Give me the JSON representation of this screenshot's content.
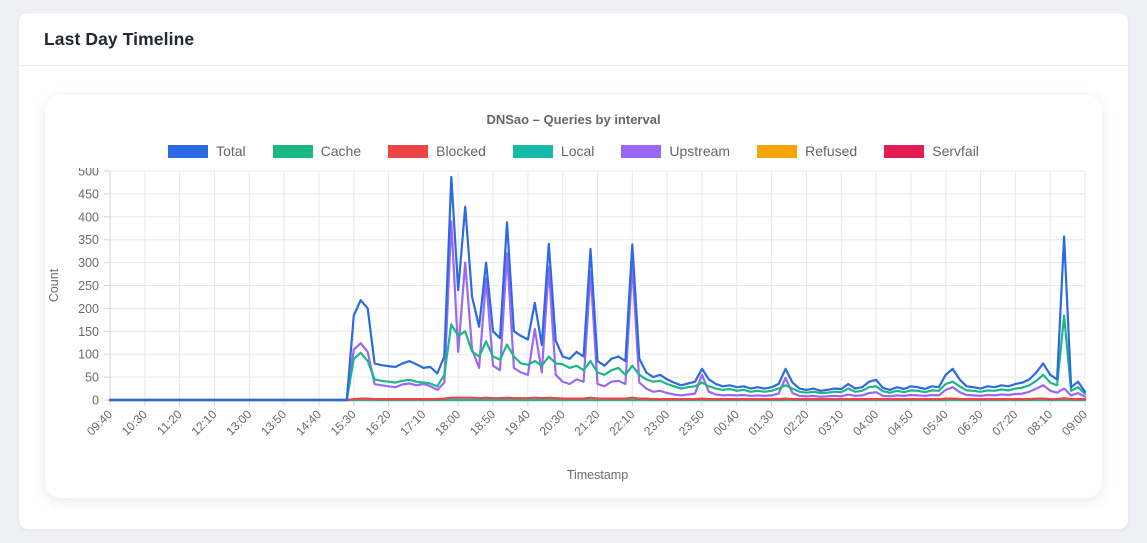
{
  "card": {
    "title": "Last Day Timeline"
  },
  "chart_data": {
    "type": "line",
    "title": "DNSao – Queries by interval",
    "xlabel": "Timestamp",
    "ylabel": "Count",
    "ylim": [
      0,
      500
    ],
    "y_ticks": [
      0,
      50,
      100,
      150,
      200,
      250,
      300,
      350,
      400,
      450,
      500
    ],
    "grid": true,
    "legend_position": "top",
    "interval_minutes": 10,
    "x_tick_every": 5,
    "x_tick_labels": [
      "09:40",
      "10:30",
      "11:20",
      "12:10",
      "13:00",
      "13:50",
      "14:40",
      "15:30",
      "16:20",
      "17:10",
      "18:00",
      "18:50",
      "19:40",
      "20:30",
      "21:20",
      "22:10",
      "23:00",
      "23:50",
      "00:40",
      "01:30",
      "02:20",
      "03:10",
      "04:00",
      "04:50",
      "05:40",
      "06:30",
      "07:20",
      "08:10",
      "09:00"
    ],
    "series": [
      {
        "name": "Total",
        "color": "#2b6ae3",
        "values": [
          0,
          0,
          0,
          0,
          0,
          0,
          0,
          0,
          0,
          0,
          0,
          0,
          0,
          0,
          0,
          0,
          0,
          0,
          0,
          0,
          0,
          0,
          0,
          0,
          0,
          0,
          0,
          0,
          0,
          0,
          0,
          0,
          0,
          0,
          0,
          185,
          218,
          200,
          80,
          76,
          74,
          72,
          80,
          85,
          78,
          70,
          72,
          58,
          95,
          487,
          240,
          422,
          225,
          160,
          300,
          150,
          135,
          388,
          150,
          140,
          132,
          212,
          120,
          341,
          130,
          95,
          90,
          105,
          95,
          330,
          85,
          75,
          90,
          95,
          85,
          340,
          90,
          60,
          50,
          55,
          45,
          38,
          32,
          36,
          40,
          68,
          45,
          35,
          30,
          32,
          28,
          30,
          25,
          28,
          25,
          28,
          35,
          68,
          38,
          25,
          22,
          25,
          20,
          22,
          25,
          24,
          35,
          25,
          28,
          40,
          44,
          26,
          22,
          28,
          24,
          30,
          28,
          24,
          30,
          28,
          55,
          68,
          45,
          30,
          28,
          25,
          30,
          28,
          32,
          30,
          35,
          38,
          45,
          60,
          80,
          55,
          45,
          357,
          28,
          40,
          18
        ]
      },
      {
        "name": "Cache",
        "color": "#1cb785",
        "values": [
          0,
          0,
          0,
          0,
          0,
          0,
          0,
          0,
          0,
          0,
          0,
          0,
          0,
          0,
          0,
          0,
          0,
          0,
          0,
          0,
          0,
          0,
          0,
          0,
          0,
          0,
          0,
          0,
          0,
          0,
          0,
          0,
          0,
          0,
          0,
          90,
          103,
          85,
          45,
          42,
          40,
          38,
          42,
          44,
          40,
          38,
          36,
          30,
          55,
          165,
          140,
          150,
          106,
          95,
          128,
          95,
          88,
          121,
          95,
          80,
          77,
          85,
          75,
          95,
          80,
          78,
          70,
          75,
          65,
          85,
          60,
          55,
          65,
          70,
          55,
          75,
          55,
          45,
          40,
          42,
          35,
          30,
          25,
          28,
          30,
          38,
          30,
          25,
          22,
          24,
          20,
          22,
          18,
          20,
          18,
          20,
          25,
          32,
          25,
          18,
          16,
          18,
          15,
          16,
          18,
          17,
          25,
          18,
          20,
          28,
          30,
          19,
          16,
          20,
          17,
          21,
          20,
          17,
          21,
          20,
          35,
          40,
          30,
          21,
          20,
          18,
          21,
          20,
          23,
          21,
          25,
          27,
          32,
          42,
          55,
          38,
          32,
          184,
          20,
          28,
          13
        ]
      },
      {
        "name": "Blocked",
        "color": "#ec4545",
        "values": [
          0,
          0,
          0,
          0,
          0,
          0,
          0,
          0,
          0,
          0,
          0,
          0,
          0,
          0,
          0,
          0,
          0,
          0,
          0,
          0,
          0,
          0,
          0,
          0,
          0,
          0,
          0,
          0,
          0,
          0,
          0,
          0,
          0,
          0,
          0,
          2,
          3,
          3,
          2,
          2,
          2,
          2,
          2,
          2,
          2,
          2,
          2,
          2,
          3,
          5,
          5,
          5,
          5,
          4,
          5,
          4,
          4,
          5,
          4,
          4,
          4,
          5,
          4,
          5,
          4,
          3,
          3,
          3,
          3,
          5,
          3,
          3,
          3,
          3,
          3,
          5,
          3,
          3,
          2,
          2,
          2,
          2,
          2,
          2,
          2,
          3,
          2,
          2,
          2,
          2,
          2,
          2,
          2,
          2,
          2,
          2,
          2,
          3,
          2,
          2,
          2,
          2,
          2,
          2,
          2,
          2,
          2,
          2,
          2,
          2,
          2,
          2,
          2,
          2,
          2,
          2,
          2,
          2,
          2,
          2,
          3,
          3,
          2,
          2,
          2,
          2,
          2,
          2,
          2,
          2,
          2,
          2,
          2,
          3,
          3,
          2,
          2,
          4,
          2,
          2,
          2
        ]
      },
      {
        "name": "Local",
        "color": "#16b8a6",
        "values": [
          0,
          0,
          0,
          0,
          0,
          0,
          0,
          0,
          0,
          0,
          0,
          0,
          0,
          0,
          0,
          0,
          0,
          0,
          0,
          0,
          0,
          0,
          0,
          0,
          0,
          0,
          0,
          0,
          0,
          0,
          0,
          0,
          0,
          0,
          0,
          0,
          0,
          0,
          0,
          0,
          0,
          0,
          0,
          0,
          0,
          0,
          0,
          0,
          0,
          0,
          0,
          0,
          0,
          0,
          0,
          0,
          0,
          0,
          0,
          0,
          0,
          0,
          0,
          0,
          0,
          0,
          0,
          0,
          0,
          0,
          0,
          0,
          0,
          0,
          0,
          0,
          0,
          0,
          0,
          0,
          0,
          0,
          0,
          0,
          0,
          0,
          0,
          0,
          0,
          0,
          0,
          0,
          0,
          0,
          0,
          0,
          0,
          0,
          0,
          0,
          0,
          0,
          0,
          0,
          0,
          0,
          0,
          0,
          0,
          0,
          0,
          0,
          0,
          0,
          0,
          0,
          0,
          0,
          0,
          0,
          0,
          0,
          0,
          0,
          0,
          0,
          0,
          0,
          0,
          0,
          0,
          0,
          0,
          0,
          0,
          0,
          0,
          0,
          0,
          0,
          0
        ]
      },
      {
        "name": "Upstream",
        "color": "#9a68f5",
        "values": [
          0,
          0,
          0,
          0,
          0,
          0,
          0,
          0,
          0,
          0,
          0,
          0,
          0,
          0,
          0,
          0,
          0,
          0,
          0,
          0,
          0,
          0,
          0,
          0,
          0,
          0,
          0,
          0,
          0,
          0,
          0,
          0,
          0,
          0,
          0,
          110,
          124,
          105,
          35,
          32,
          30,
          28,
          34,
          36,
          32,
          35,
          30,
          22,
          38,
          390,
          105,
          300,
          110,
          70,
          265,
          75,
          65,
          320,
          70,
          60,
          55,
          155,
          60,
          290,
          55,
          40,
          35,
          45,
          40,
          280,
          35,
          30,
          40,
          42,
          35,
          295,
          38,
          25,
          18,
          20,
          15,
          12,
          10,
          12,
          14,
          55,
          18,
          12,
          10,
          11,
          10,
          11,
          9,
          10,
          9,
          10,
          14,
          48,
          15,
          9,
          8,
          9,
          7,
          8,
          9,
          8,
          12,
          9,
          10,
          15,
          17,
          9,
          8,
          10,
          9,
          11,
          10,
          9,
          11,
          10,
          22,
          28,
          17,
          11,
          10,
          9,
          11,
          10,
          12,
          11,
          13,
          14,
          18,
          25,
          32,
          20,
          16,
          25,
          10,
          15,
          7
        ]
      },
      {
        "name": "Refused",
        "color": "#f7a409",
        "values": [
          0,
          0,
          0,
          0,
          0,
          0,
          0,
          0,
          0,
          0,
          0,
          0,
          0,
          0,
          0,
          0,
          0,
          0,
          0,
          0,
          0,
          0,
          0,
          0,
          0,
          0,
          0,
          0,
          0,
          0,
          0,
          0,
          0,
          0,
          0,
          0,
          0,
          0,
          0,
          0,
          0,
          0,
          0,
          0,
          0,
          0,
          0,
          0,
          0,
          0,
          0,
          0,
          0,
          0,
          0,
          0,
          0,
          0,
          0,
          0,
          0,
          0,
          0,
          0,
          0,
          0,
          0,
          0,
          0,
          0,
          0,
          0,
          0,
          0,
          0,
          0,
          0,
          0,
          0,
          0,
          0,
          0,
          0,
          0,
          0,
          0,
          0,
          0,
          0,
          0,
          0,
          0,
          0,
          0,
          0,
          0,
          0,
          0,
          0,
          0,
          0,
          0,
          0,
          0,
          0,
          0,
          0,
          0,
          0,
          0,
          0,
          0,
          0,
          0,
          0,
          0,
          0,
          0,
          0,
          0,
          0,
          0,
          0,
          0,
          0,
          0,
          0,
          0,
          0,
          0,
          0,
          0,
          0,
          0,
          0,
          0,
          0,
          0,
          0,
          0,
          0
        ]
      },
      {
        "name": "Servfail",
        "color": "#e11d51",
        "values": [
          0,
          0,
          0,
          0,
          0,
          0,
          0,
          0,
          0,
          0,
          0,
          0,
          0,
          0,
          0,
          0,
          0,
          0,
          0,
          0,
          0,
          0,
          0,
          0,
          0,
          0,
          0,
          0,
          0,
          0,
          0,
          0,
          0,
          0,
          0,
          0,
          0,
          0,
          0,
          0,
          0,
          0,
          0,
          0,
          0,
          0,
          0,
          0,
          0,
          0,
          0,
          0,
          0,
          0,
          0,
          0,
          0,
          0,
          0,
          0,
          0,
          0,
          0,
          0,
          0,
          0,
          0,
          0,
          0,
          0,
          0,
          0,
          0,
          0,
          0,
          0,
          0,
          0,
          0,
          0,
          0,
          0,
          0,
          0,
          0,
          0,
          0,
          0,
          0,
          0,
          0,
          0,
          0,
          0,
          0,
          0,
          0,
          0,
          0,
          0,
          0,
          0,
          0,
          0,
          0,
          0,
          0,
          0,
          0,
          0,
          0,
          0,
          0,
          0,
          0,
          0,
          0,
          0,
          0,
          0,
          0,
          0,
          0,
          0,
          0,
          0,
          0,
          0,
          0,
          0,
          0,
          0,
          0,
          0,
          0,
          0,
          0,
          0,
          0,
          0,
          0
        ]
      }
    ]
  }
}
